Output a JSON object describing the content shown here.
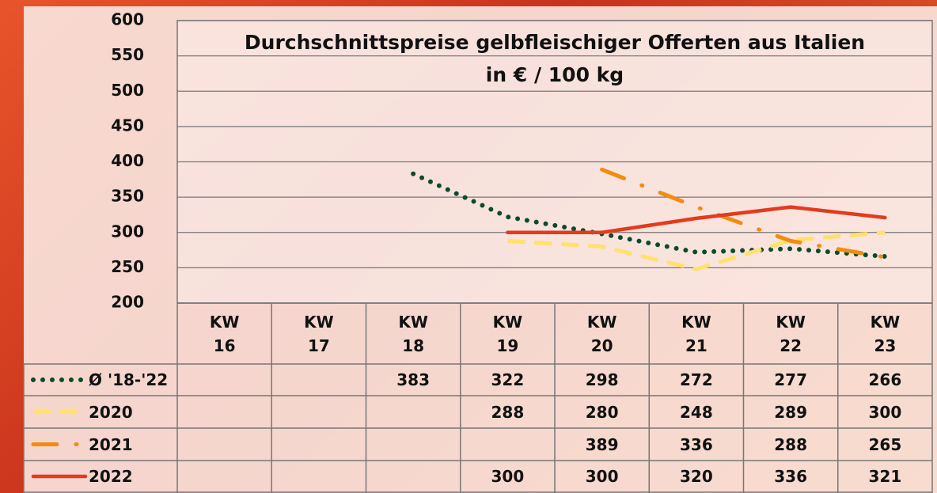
{
  "chart_data": {
    "type": "line",
    "title": "Durchschnittspreise gelbfleischiger Offerten aus Italien",
    "subtitle": "in € / 100 kg",
    "categories": [
      "KW 16",
      "KW 17",
      "KW 18",
      "KW 19",
      "KW 20",
      "KW 21",
      "KW 22",
      "KW 23"
    ],
    "ylim": [
      200,
      600
    ],
    "yticks": [
      200,
      250,
      300,
      350,
      400,
      450,
      500,
      550,
      600
    ],
    "grid": true,
    "series": [
      {
        "name": "Ø '18-'22",
        "color": "#0b4a2c",
        "style": "dotted",
        "values": [
          null,
          null,
          383,
          322,
          298,
          272,
          277,
          266
        ]
      },
      {
        "name": "2020",
        "color": "#ffe16b",
        "style": "dashed",
        "values": [
          null,
          null,
          null,
          288,
          280,
          248,
          289,
          300
        ]
      },
      {
        "name": "2021",
        "color": "#f28c0f",
        "style": "dashdot",
        "values": [
          null,
          null,
          null,
          null,
          389,
          336,
          288,
          265
        ]
      },
      {
        "name": "2022",
        "color": "#e23b1d",
        "style": "solid",
        "values": [
          null,
          null,
          null,
          300,
          300,
          320,
          336,
          321
        ]
      }
    ]
  }
}
